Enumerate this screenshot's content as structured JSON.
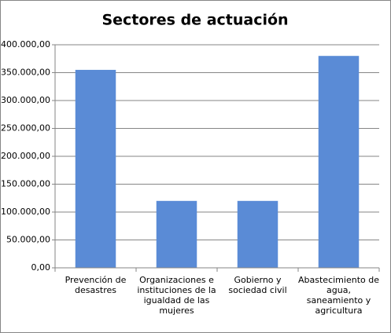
{
  "chart_data": {
    "type": "bar",
    "title": "Sectores de actuación",
    "categories": [
      "Prevención de desastres",
      "Organizaciones e instituciones de la igualdad de las mujeres",
      "Gobierno y sociedad civil",
      "Abastecimiento de agua, saneamiento y agricultura"
    ],
    "values": [
      355000,
      120000,
      120000,
      380000
    ],
    "color": "#5a8bd6",
    "ylim": [
      0,
      400000
    ],
    "yticks": [
      {
        "value": 0,
        "label": "0,00"
      },
      {
        "value": 50000,
        "label": "50.000,00"
      },
      {
        "value": 100000,
        "label": "100.000,00"
      },
      {
        "value": 150000,
        "label": "150.000,00"
      },
      {
        "value": 200000,
        "label": "200.000,00"
      },
      {
        "value": 250000,
        "label": "250.000,00"
      },
      {
        "value": 300000,
        "label": "300.000,00"
      },
      {
        "value": 350000,
        "label": "350.000,00"
      },
      {
        "value": 400000,
        "label": "400.000,00"
      }
    ],
    "grid": true
  }
}
